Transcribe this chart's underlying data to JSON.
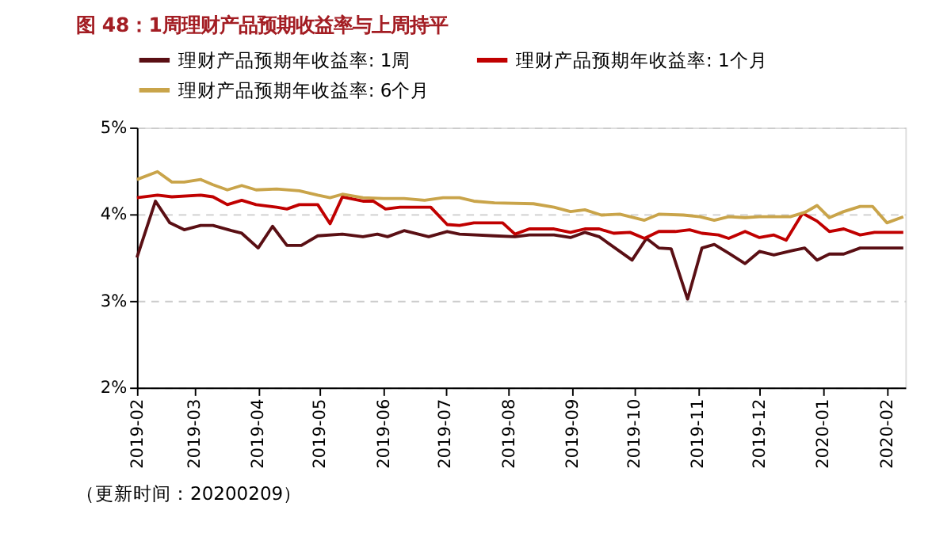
{
  "chart_data": {
    "type": "line",
    "title": "图 48：1周理财产品预期收益率与上周持平",
    "xlim": [
      "2019-02-01",
      "2020-02-10"
    ],
    "xticks": [
      "2019-02",
      "2019-03",
      "2019-04",
      "2019-05",
      "2019-06",
      "2019-07",
      "2019-08",
      "2019-09",
      "2019-10",
      "2019-11",
      "2019-12",
      "2020-01",
      "2020-02"
    ],
    "ylim": [
      2,
      5
    ],
    "yticks": [
      {
        "value": 2,
        "label": "2%"
      },
      {
        "value": 3,
        "label": "3%"
      },
      {
        "value": 4,
        "label": "4%"
      },
      {
        "value": 5,
        "label": "5%"
      }
    ],
    "grid": "y",
    "legend": "top",
    "line_style": "solid",
    "annotations": [
      "（更新时间：20200209）"
    ],
    "series": [
      {
        "name": "理财产品预期年收益率: 1周",
        "color": "#5a0f14",
        "x": [
          "2019-02-01",
          "2019-02-10",
          "2019-02-17",
          "2019-02-24",
          "2019-03-04",
          "2019-03-10",
          "2019-03-19",
          "2019-03-24",
          "2019-04-01",
          "2019-04-08",
          "2019-04-15",
          "2019-04-22",
          "2019-04-30",
          "2019-05-12",
          "2019-05-22",
          "2019-05-29",
          "2019-06-03",
          "2019-06-11",
          "2019-06-23",
          "2019-07-02",
          "2019-07-08",
          "2019-07-25",
          "2019-08-04",
          "2019-08-11",
          "2019-08-23",
          "2019-08-31",
          "2019-09-07",
          "2019-09-14",
          "2019-09-30",
          "2019-10-07",
          "2019-10-13",
          "2019-10-19",
          "2019-10-27",
          "2019-11-03",
          "2019-11-09",
          "2019-11-16",
          "2019-11-24",
          "2019-12-01",
          "2019-12-08",
          "2019-12-17",
          "2019-12-23",
          "2019-12-29",
          "2020-01-04",
          "2020-01-11",
          "2020-01-19",
          "2020-02-09"
        ],
        "values": [
          3.5,
          4.15,
          3.9,
          3.82,
          3.87,
          3.87,
          3.81,
          3.78,
          3.61,
          3.86,
          3.64,
          3.64,
          3.75,
          3.77,
          3.74,
          3.77,
          3.74,
          3.81,
          3.74,
          3.8,
          3.77,
          3.75,
          3.74,
          3.76,
          3.76,
          3.73,
          3.79,
          3.74,
          3.47,
          3.72,
          3.61,
          3.6,
          3.02,
          3.61,
          3.65,
          3.55,
          3.43,
          3.57,
          3.53,
          3.58,
          3.61,
          3.47,
          3.54,
          3.54,
          3.61,
          3.61
        ]
      },
      {
        "name": "理财产品预期年收益率: 1个月",
        "color": "#c00000",
        "x": [
          "2019-02-01",
          "2019-02-11",
          "2019-02-18",
          "2019-03-04",
          "2019-03-10",
          "2019-03-17",
          "2019-03-24",
          "2019-03-31",
          "2019-04-10",
          "2019-04-15",
          "2019-04-21",
          "2019-04-30",
          "2019-05-06",
          "2019-05-12",
          "2019-05-22",
          "2019-05-27",
          "2019-06-02",
          "2019-06-09",
          "2019-06-24",
          "2019-07-02",
          "2019-07-08",
          "2019-07-15",
          "2019-07-23",
          "2019-07-29",
          "2019-08-04",
          "2019-08-11",
          "2019-08-23",
          "2019-08-31",
          "2019-09-07",
          "2019-09-14",
          "2019-09-21",
          "2019-09-29",
          "2019-10-06",
          "2019-10-13",
          "2019-10-21",
          "2019-10-28",
          "2019-11-03",
          "2019-11-11",
          "2019-11-16",
          "2019-11-24",
          "2019-12-01",
          "2019-12-08",
          "2019-12-14",
          "2019-12-22",
          "2019-12-29",
          "2020-01-04",
          "2020-01-11",
          "2020-01-19",
          "2020-01-26",
          "2020-02-09"
        ],
        "values": [
          4.19,
          4.22,
          4.2,
          4.22,
          4.2,
          4.11,
          4.16,
          4.11,
          4.08,
          4.06,
          4.11,
          4.11,
          3.89,
          4.2,
          4.15,
          4.15,
          4.06,
          4.08,
          4.08,
          3.88,
          3.87,
          3.9,
          3.9,
          3.9,
          3.77,
          3.83,
          3.83,
          3.79,
          3.83,
          3.83,
          3.78,
          3.79,
          3.72,
          3.8,
          3.8,
          3.82,
          3.78,
          3.76,
          3.72,
          3.8,
          3.73,
          3.76,
          3.7,
          4.01,
          3.92,
          3.8,
          3.83,
          3.76,
          3.79,
          3.79
        ]
      },
      {
        "name": "理财产品预期年收益率: 6个月",
        "color": "#c9a44a",
        "x": [
          "2019-02-01",
          "2019-02-11",
          "2019-02-18",
          "2019-02-24",
          "2019-03-04",
          "2019-03-10",
          "2019-03-17",
          "2019-03-24",
          "2019-03-31",
          "2019-04-10",
          "2019-04-21",
          "2019-04-30",
          "2019-05-06",
          "2019-05-12",
          "2019-05-22",
          "2019-06-01",
          "2019-06-11",
          "2019-06-21",
          "2019-06-30",
          "2019-07-08",
          "2019-07-15",
          "2019-07-25",
          "2019-08-13",
          "2019-08-23",
          "2019-08-31",
          "2019-09-07",
          "2019-09-15",
          "2019-09-24",
          "2019-10-01",
          "2019-10-06",
          "2019-10-13",
          "2019-10-25",
          "2019-11-02",
          "2019-11-09",
          "2019-11-16",
          "2019-11-24",
          "2019-12-01",
          "2019-12-16",
          "2019-12-23",
          "2019-12-29",
          "2020-01-04",
          "2020-01-11",
          "2020-01-19",
          "2020-01-25",
          "2020-02-01",
          "2020-02-09"
        ],
        "values": [
          4.4,
          4.49,
          4.37,
          4.37,
          4.4,
          4.34,
          4.28,
          4.33,
          4.28,
          4.29,
          4.27,
          4.22,
          4.19,
          4.23,
          4.19,
          4.18,
          4.18,
          4.16,
          4.19,
          4.19,
          4.15,
          4.13,
          4.12,
          4.08,
          4.03,
          4.05,
          3.99,
          4.0,
          3.96,
          3.93,
          4.0,
          3.99,
          3.97,
          3.93,
          3.97,
          3.96,
          3.97,
          3.97,
          4.02,
          4.1,
          3.96,
          4.03,
          4.09,
          4.09,
          3.9,
          3.97
        ]
      }
    ]
  }
}
